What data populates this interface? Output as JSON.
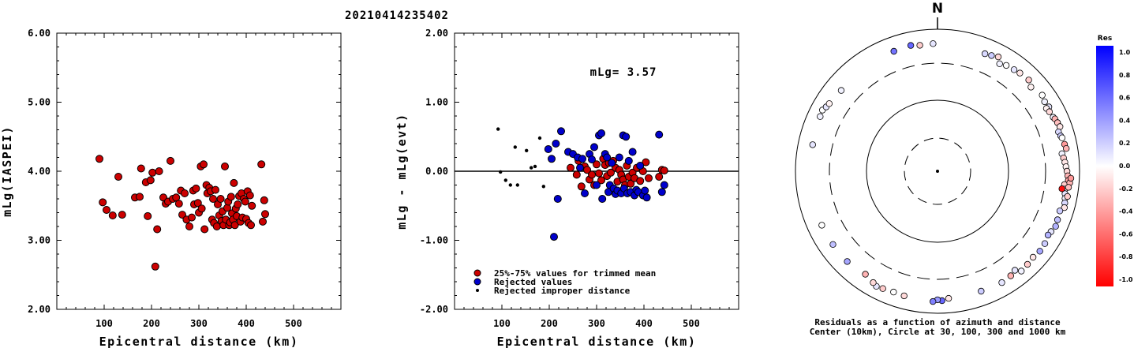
{
  "title": "20210414235402",
  "chart_data": [
    {
      "type": "scatter",
      "ylabel": "mLg(IASPEI)",
      "xlabel": "Epicentral distance (km)",
      "xlim": [
        0,
        600
      ],
      "ylim": [
        2.0,
        6.0
      ],
      "x_ticks": [
        "100",
        "200",
        "300",
        "400",
        "500"
      ],
      "y_ticks": [
        "2.00",
        "3.00",
        "4.00",
        "5.00",
        "6.00"
      ],
      "series": [
        {
          "color": "#cc0000",
          "points": [
            [
              90,
              4.18
            ],
            [
              97,
              3.55
            ],
            [
              105,
              3.44
            ],
            [
              118,
              3.36
            ],
            [
              130,
              3.92
            ],
            [
              138,
              3.37
            ],
            [
              165,
              3.62
            ],
            [
              175,
              3.63
            ],
            [
              178,
              4.04
            ],
            [
              188,
              3.84
            ],
            [
              192,
              3.35
            ],
            [
              198,
              3.87
            ],
            [
              202,
              3.98
            ],
            [
              208,
              2.62
            ],
            [
              212,
              3.16
            ],
            [
              216,
              4.0
            ],
            [
              225,
              3.62
            ],
            [
              230,
              3.53
            ],
            [
              235,
              3.56
            ],
            [
              240,
              4.15
            ],
            [
              245,
              3.6
            ],
            [
              252,
              3.62
            ],
            [
              258,
              3.53
            ],
            [
              262,
              3.72
            ],
            [
              265,
              3.37
            ],
            [
              270,
              3.68
            ],
            [
              274,
              3.3
            ],
            [
              280,
              3.2
            ],
            [
              285,
              3.33
            ],
            [
              288,
              3.72
            ],
            [
              290,
              3.52
            ],
            [
              294,
              3.75
            ],
            [
              298,
              3.54
            ],
            [
              300,
              3.4
            ],
            [
              304,
              4.07
            ],
            [
              306,
              3.46
            ],
            [
              310,
              4.1
            ],
            [
              312,
              3.16
            ],
            [
              316,
              3.8
            ],
            [
              318,
              3.68
            ],
            [
              322,
              3.76
            ],
            [
              325,
              3.71
            ],
            [
              328,
              3.3
            ],
            [
              330,
              3.6
            ],
            [
              332,
              3.25
            ],
            [
              335,
              3.73
            ],
            [
              338,
              3.2
            ],
            [
              340,
              3.52
            ],
            [
              343,
              3.36
            ],
            [
              346,
              3.6
            ],
            [
              348,
              3.28
            ],
            [
              350,
              3.42
            ],
            [
              352,
              3.22
            ],
            [
              355,
              4.07
            ],
            [
              357,
              3.3
            ],
            [
              360,
              3.47
            ],
            [
              362,
              3.56
            ],
            [
              364,
              3.22
            ],
            [
              366,
              3.26
            ],
            [
              368,
              3.63
            ],
            [
              370,
              3.39
            ],
            [
              372,
              3.3
            ],
            [
              374,
              3.83
            ],
            [
              376,
              3.22
            ],
            [
              378,
              3.46
            ],
            [
              380,
              3.35
            ],
            [
              382,
              3.52
            ],
            [
              385,
              3.64
            ],
            [
              388,
              3.27
            ],
            [
              390,
              3.68
            ],
            [
              392,
              3.33
            ],
            [
              395,
              3.6
            ],
            [
              398,
              3.56
            ],
            [
              400,
              3.31
            ],
            [
              403,
              3.71
            ],
            [
              405,
              3.25
            ],
            [
              408,
              3.65
            ],
            [
              410,
              3.22
            ],
            [
              412,
              3.5
            ],
            [
              432,
              4.1
            ],
            [
              435,
              3.27
            ],
            [
              438,
              3.58
            ],
            [
              440,
              3.38
            ]
          ]
        }
      ]
    },
    {
      "type": "scatter",
      "ylabel": "mLg - mLg(evt)",
      "xlabel": "Epicentral distance (km)",
      "xlim": [
        0,
        600
      ],
      "ylim": [
        -2.0,
        2.0
      ],
      "x_ticks": [
        "100",
        "200",
        "300",
        "400",
        "500"
      ],
      "y_ticks": [
        "-2.00",
        "-1.00",
        "0.00",
        "1.00",
        "2.00"
      ],
      "annotation": "mLg= 3.57",
      "legend": [
        {
          "label": "25%-75% values for trimmed mean",
          "color": "#cc0000"
        },
        {
          "label": "Rejected values",
          "color": "#0000cc"
        },
        {
          "label": "Rejected improper distance",
          "color": "#000000"
        }
      ],
      "series": [
        {
          "name": "25%-75% values for trimmed mean",
          "color": "#cc0000",
          "points": [
            [
              245,
              0.05
            ],
            [
              258,
              -0.05
            ],
            [
              262,
              0.15
            ],
            [
              268,
              -0.22
            ],
            [
              275,
              0.07
            ],
            [
              280,
              0.02
            ],
            [
              285,
              -0.12
            ],
            [
              290,
              -0.05
            ],
            [
              295,
              -0.2
            ],
            [
              300,
              0.1
            ],
            [
              305,
              -0.03
            ],
            [
              310,
              -0.13
            ],
            [
              314,
              0.18
            ],
            [
              318,
              0.09
            ],
            [
              322,
              -0.07
            ],
            [
              326,
              0.12
            ],
            [
              330,
              -0.02
            ],
            [
              335,
              0.15
            ],
            [
              340,
              0.05
            ],
            [
              344,
              -0.15
            ],
            [
              348,
              0.02
            ],
            [
              352,
              -0.05
            ],
            [
              356,
              -0.12
            ],
            [
              360,
              -0.2
            ],
            [
              364,
              0.08
            ],
            [
              368,
              -0.08
            ],
            [
              372,
              -0.18
            ],
            [
              376,
              -0.02
            ],
            [
              380,
              -0.1
            ],
            [
              385,
              0.05
            ],
            [
              392,
              -0.14
            ],
            [
              398,
              0.0
            ],
            [
              404,
              0.13
            ],
            [
              410,
              -0.1
            ],
            [
              432,
              -0.08
            ],
            [
              438,
              0.02
            ],
            [
              443,
              0.01
            ]
          ]
        },
        {
          "name": "Rejected values",
          "color": "#0000cc",
          "points": [
            [
              198,
              0.32
            ],
            [
              205,
              0.18
            ],
            [
              210,
              -0.95
            ],
            [
              214,
              0.4
            ],
            [
              218,
              -0.4
            ],
            [
              225,
              0.58
            ],
            [
              240,
              0.28
            ],
            [
              250,
              0.25
            ],
            [
              260,
              0.2
            ],
            [
              265,
              0.05
            ],
            [
              270,
              0.18
            ],
            [
              275,
              -0.32
            ],
            [
              285,
              0.25
            ],
            [
              290,
              0.17
            ],
            [
              295,
              0.35
            ],
            [
              300,
              -0.2
            ],
            [
              305,
              0.52
            ],
            [
              310,
              0.55
            ],
            [
              312,
              -0.4
            ],
            [
              318,
              0.25
            ],
            [
              322,
              0.2
            ],
            [
              325,
              -0.3
            ],
            [
              328,
              -0.2
            ],
            [
              332,
              0.12
            ],
            [
              336,
              -0.25
            ],
            [
              340,
              -0.33
            ],
            [
              344,
              -0.28
            ],
            [
              348,
              0.2
            ],
            [
              352,
              -0.32
            ],
            [
              356,
              0.52
            ],
            [
              358,
              -0.25
            ],
            [
              362,
              0.5
            ],
            [
              365,
              -0.32
            ],
            [
              368,
              0.15
            ],
            [
              372,
              -0.3
            ],
            [
              376,
              0.28
            ],
            [
              380,
              -0.35
            ],
            [
              384,
              -0.27
            ],
            [
              388,
              -0.3
            ],
            [
              392,
              0.08
            ],
            [
              398,
              -0.35
            ],
            [
              402,
              -0.28
            ],
            [
              406,
              -0.38
            ],
            [
              432,
              0.53
            ],
            [
              438,
              -0.3
            ],
            [
              443,
              -0.2
            ]
          ]
        },
        {
          "name": "Rejected improper distance",
          "color": "#000000",
          "points": [
            [
              92,
              0.61
            ],
            [
              97,
              -0.01
            ],
            [
              108,
              -0.13
            ],
            [
              118,
              -0.2
            ],
            [
              128,
              0.35
            ],
            [
              133,
              -0.2
            ],
            [
              152,
              0.3
            ],
            [
              162,
              0.05
            ],
            [
              170,
              0.07
            ],
            [
              180,
              0.48
            ],
            [
              188,
              -0.22
            ]
          ]
        }
      ]
    },
    {
      "type": "scatter",
      "subtype": "polar",
      "north_label": "N",
      "caption_lines": [
        "Residuals as a function of azimuth and distance",
        "Center (10km), Circle at 30, 100, 300 and 1000 km"
      ],
      "colorbar": {
        "title": "Res",
        "ticks": [
          "1.0",
          "0.8",
          "0.6",
          "0.4",
          "0.2",
          "0.0",
          "-0.2",
          "-0.4",
          "-0.6",
          "-0.8",
          "-1.0"
        ],
        "max_color": "#0000ff",
        "zero_color": "#ffffff",
        "min_color": "#ff0000"
      },
      "points_azimuth_distance_residual": [
        [
          57,
          600,
          0.05
        ],
        [
          60,
          620,
          0.1
        ],
        [
          54,
          640,
          0.0
        ],
        [
          48,
          560,
          -0.05
        ],
        [
          33,
          570,
          0.0
        ],
        [
          28,
          640,
          -0.15
        ],
        [
          25,
          600,
          0.2
        ],
        [
          22,
          580,
          0.15
        ],
        [
          30,
          530,
          0.05
        ],
        [
          37,
          590,
          0.1
        ],
        [
          40,
          610,
          -0.1
        ],
        [
          45,
          630,
          -0.2
        ],
        [
          60,
          560,
          -0.05
        ],
        [
          62,
          580,
          -0.15
        ],
        [
          65,
          600,
          0.05
        ],
        [
          66,
          620,
          -0.3
        ],
        [
          68,
          640,
          -0.25
        ],
        [
          70,
          660,
          -0.1
        ],
        [
          72,
          590,
          0.15
        ],
        [
          74,
          610,
          0.2
        ],
        [
          75,
          630,
          0.0
        ],
        [
          78,
          650,
          -0.4
        ],
        [
          80,
          670,
          -0.3
        ],
        [
          82,
          560,
          0.05
        ],
        [
          84,
          580,
          -0.2
        ],
        [
          86,
          600,
          -0.1
        ],
        [
          88,
          620,
          -0.05
        ],
        [
          90,
          640,
          -0.15
        ],
        [
          92,
          660,
          -0.3
        ],
        [
          94,
          680,
          -0.35
        ],
        [
          96,
          600,
          -0.2
        ],
        [
          98,
          620,
          -0.05
        ],
        [
          100,
          640,
          0.1
        ],
        [
          102,
          660,
          0.05
        ],
        [
          104,
          680,
          0.15
        ],
        [
          106,
          700,
          -0.1
        ],
        [
          95,
          720,
          -0.3
        ],
        [
          93,
          740,
          -0.4
        ],
        [
          97,
          700,
          -0.25
        ],
        [
          101,
          710,
          -0.2
        ],
        [
          98,
          560,
          -0.95
        ],
        [
          108,
          620,
          0.2
        ],
        [
          112,
          640,
          0.25
        ],
        [
          115,
          660,
          0.3
        ],
        [
          118,
          620,
          0.1
        ],
        [
          120,
          600,
          0.3
        ],
        [
          124,
          640,
          0.2
        ],
        [
          128,
          650,
          0.35
        ],
        [
          132,
          620,
          -0.1
        ],
        [
          136,
          640,
          -0.2
        ],
        [
          140,
          660,
          0.05
        ],
        [
          142,
          560,
          0.1
        ],
        [
          145,
          600,
          -0.3
        ],
        [
          150,
          620,
          0.1
        ],
        [
          160,
          600,
          0.2
        ],
        [
          175,
          600,
          -0.1
        ],
        [
          178,
          640,
          0.6
        ],
        [
          180,
          620,
          0.4
        ],
        [
          182,
          660,
          0.5
        ],
        [
          195,
          630,
          -0.15
        ],
        [
          200,
          620,
          0.0
        ],
        [
          205,
          640,
          -0.2
        ],
        [
          208,
          660,
          0.1
        ],
        [
          210,
          620,
          -0.15
        ],
        [
          215,
          560,
          -0.3
        ],
        [
          225,
          600,
          0.35
        ],
        [
          235,
          600,
          0.25
        ],
        [
          245,
          600,
          0.0
        ],
        [
          282,
          600,
          0.1
        ],
        [
          295,
          640,
          0.05
        ],
        [
          298,
          660,
          0.0
        ],
        [
          300,
          620,
          0.1
        ],
        [
          302,
          600,
          -0.05
        ],
        [
          310,
          560,
          0.05
        ],
        [
          340,
          600,
          0.55
        ],
        [
          348,
          620,
          0.6
        ],
        [
          352,
          590,
          -0.2
        ],
        [
          358,
          600,
          0.1
        ]
      ]
    }
  ]
}
